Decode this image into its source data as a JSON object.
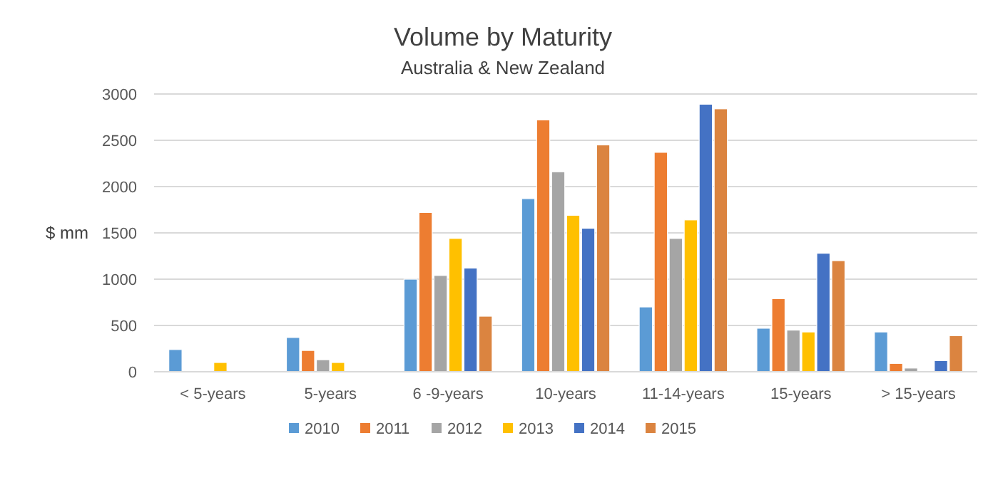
{
  "chart_data": {
    "type": "bar",
    "title": "Volume by Maturity",
    "subtitle": "Australia & New Zealand",
    "ylabel": "$ mm",
    "categories": [
      "< 5-years",
      "5-years",
      "6 -9-years",
      "10-years",
      "11-14-years",
      "15-years",
      "> 15-years"
    ],
    "series": [
      {
        "name": "2010",
        "color": "#5b9bd5",
        "values": [
          240,
          370,
          1000,
          1870,
          700,
          470,
          430
        ]
      },
      {
        "name": "2011",
        "color": "#ed7d31",
        "values": [
          null,
          230,
          1720,
          2720,
          2370,
          790,
          90
        ]
      },
      {
        "name": "2012",
        "color": "#a5a5a5",
        "values": [
          null,
          130,
          1040,
          2160,
          1440,
          450,
          40
        ]
      },
      {
        "name": "2013",
        "color": "#ffc000",
        "values": [
          100,
          100,
          1440,
          1690,
          1640,
          430,
          null
        ]
      },
      {
        "name": "2014",
        "color": "#4472c4",
        "values": [
          null,
          null,
          1120,
          1550,
          2890,
          1280,
          120
        ]
      },
      {
        "name": "2015",
        "color": "#db8440",
        "values": [
          null,
          null,
          600,
          2450,
          2840,
          1200,
          390
        ]
      }
    ],
    "ylim": [
      0,
      3000
    ],
    "yticks": [
      0,
      500,
      1000,
      1500,
      2000,
      2500,
      3000
    ],
    "grid": "y",
    "legend": "bottom"
  }
}
